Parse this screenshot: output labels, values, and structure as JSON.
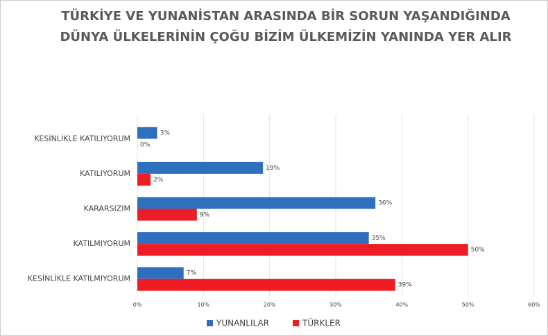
{
  "chart_data": {
    "type": "hbar",
    "title": [
      "TÜRKİYE VE YUNANİSTAN ARASINDA BİR SORUN YAŞANDIĞINDA",
      "DÜNYA ÜLKELERİNİN ÇOĞU BİZİM ÜLKEMİZİN YANINDA YER ALIR"
    ],
    "categories": [
      "KESİNLİKLE KATILIYORUM",
      "KATILIYORUM",
      "KARARSIZIM",
      "KATILMIYORUM",
      "KESİNLİKLE KATILMIYORUM"
    ],
    "series": [
      {
        "name": "YUNANLILAR",
        "color": "#2e6fc0",
        "values": [
          3,
          19,
          36,
          35,
          7
        ],
        "value_labels": [
          "3%",
          "19%",
          "36%",
          "35%",
          "7%"
        ]
      },
      {
        "name": "TÜRKLER",
        "color": "#ee1c24",
        "values": [
          0,
          2,
          9,
          50,
          39
        ],
        "value_labels": [
          "0%",
          "2%",
          "9%",
          "50%",
          "39%"
        ]
      }
    ],
    "xlim": [
      0,
      60
    ],
    "xticks": [
      {
        "value": 0,
        "label": "0%"
      },
      {
        "value": 10,
        "label": "10%"
      },
      {
        "value": 20,
        "label": "20%"
      },
      {
        "value": 30,
        "label": "30%"
      },
      {
        "value": 40,
        "label": "40%"
      },
      {
        "value": 50,
        "label": "50%"
      },
      {
        "value": 60,
        "label": "60%"
      }
    ],
    "grid": true,
    "legend": "bottom"
  }
}
